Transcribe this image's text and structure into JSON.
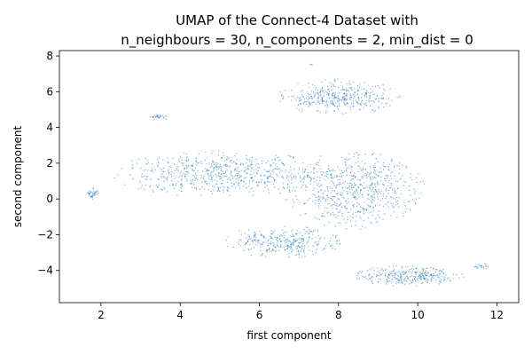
{
  "chart_data": {
    "type": "scatter",
    "title": "UMAP of the Connect-4 Dataset with",
    "subtitle": "n_neighbours = 30, n_components = 2, min_dist = 0",
    "xlabel": "first component",
    "ylabel": "second component",
    "xlim": [
      0.95,
      12.55
    ],
    "ylim": [
      -5.8,
      8.3
    ],
    "xticks": [
      2,
      4,
      6,
      8,
      10,
      12
    ],
    "yticks": [
      -4,
      -2,
      0,
      2,
      4,
      6,
      8
    ],
    "grid": false,
    "legend": "none",
    "point_color": "#1f77b4",
    "series": [
      {
        "clusters": [
          {
            "cx": 5.1,
            "cy": 1.4,
            "rx": 2.9,
            "ry": 1.3,
            "n": 650
          },
          {
            "cx": 8.4,
            "cy": 0.5,
            "rx": 1.8,
            "ry": 2.2,
            "n": 650
          },
          {
            "cx": 6.6,
            "cy": -2.4,
            "rx": 1.5,
            "ry": 0.9,
            "n": 320
          },
          {
            "cx": 8.0,
            "cy": 5.7,
            "rx": 1.6,
            "ry": 1.0,
            "n": 380
          },
          {
            "cx": 9.8,
            "cy": -4.3,
            "rx": 1.4,
            "ry": 0.6,
            "n": 300
          },
          {
            "cx": 3.5,
            "cy": 4.6,
            "rx": 0.3,
            "ry": 0.2,
            "n": 30
          },
          {
            "cx": 1.8,
            "cy": 0.3,
            "rx": 0.2,
            "ry": 0.35,
            "n": 40
          },
          {
            "cx": 11.6,
            "cy": -3.8,
            "rx": 0.2,
            "ry": 0.2,
            "n": 20
          },
          {
            "cx": 7.3,
            "cy": 7.5,
            "rx": 0.05,
            "ry": 0.05,
            "n": 3
          }
        ]
      }
    ]
  }
}
